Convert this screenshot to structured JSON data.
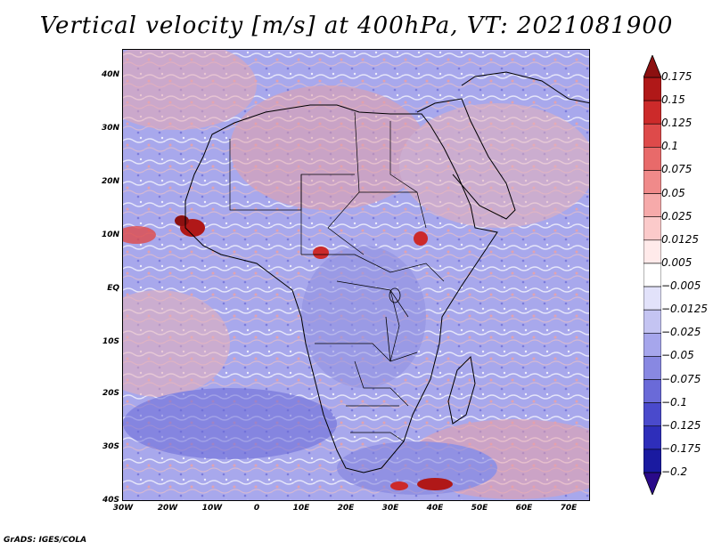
{
  "title": "Vertical velocity [m/s] at 400hPa, VT: 2021081900",
  "footer": "GrADS: IGES/COLA",
  "latitude_labels": [
    "40N",
    "30N",
    "20N",
    "10N",
    "EQ",
    "10S",
    "20S",
    "30S",
    "40S"
  ],
  "longitude_labels": [
    "30W",
    "20W",
    "10W",
    "0",
    "10E",
    "20E",
    "30E",
    "40E",
    "50E",
    "60E",
    "70E"
  ],
  "colorbar": {
    "labels": [
      "0.175",
      "0.15",
      "0.125",
      "0.1",
      "0.075",
      "0.05",
      "0.025",
      "0.0125",
      "0.005",
      "−0.005",
      "−0.0125",
      "−0.025",
      "−0.05",
      "−0.075",
      "−0.1",
      "−0.125",
      "−0.175",
      "−0.2"
    ],
    "colors": [
      "#8c1010",
      "#b01818",
      "#cc2a2a",
      "#de4a4a",
      "#e86a6a",
      "#f08a8a",
      "#f6aaaa",
      "#fbcaca",
      "#ffeaea",
      "#ffffff",
      "#e2e2fa",
      "#c4c4f2",
      "#a6a6ec",
      "#8888e2",
      "#6a6ad8",
      "#4a4acc",
      "#2e2eba",
      "#1a1aa0",
      "#2a0a8a"
    ]
  }
}
